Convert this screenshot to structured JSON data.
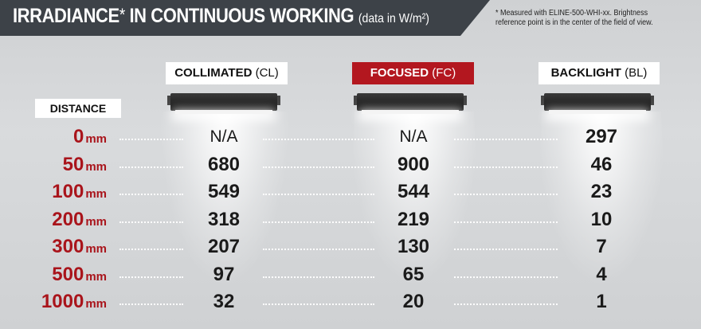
{
  "header": {
    "title_main": "IRRADIANCE",
    "title_star": "*",
    "title_rest": " IN CONTINUOUS WORKING",
    "title_unit": "(data in W/m²)",
    "footnote": "* Measured with ELINE-500-WHI-xx. Brightness reference point is in the center of the field of view."
  },
  "columns": [
    {
      "name": "COLLIMATED",
      "code": "(CL)",
      "highlight": false
    },
    {
      "name": "FOCUSED",
      "code": "(FC)",
      "highlight": true
    },
    {
      "name": "BACKLIGHT",
      "code": "(BL)",
      "highlight": false
    }
  ],
  "distance_header": "DISTANCE",
  "unit": "mm",
  "rows": [
    {
      "distance": "0",
      "cl": "N/A",
      "fc": "N/A",
      "bl": "297"
    },
    {
      "distance": "50",
      "cl": "680",
      "fc": "900",
      "bl": "46"
    },
    {
      "distance": "100",
      "cl": "549",
      "fc": "544",
      "bl": "23"
    },
    {
      "distance": "200",
      "cl": "318",
      "fc": "219",
      "bl": "10"
    },
    {
      "distance": "300",
      "cl": "207",
      "fc": "130",
      "bl": "7"
    },
    {
      "distance": "500",
      "cl": "97",
      "fc": "65",
      "bl": "4"
    },
    {
      "distance": "1000",
      "cl": "32",
      "fc": "20",
      "bl": "1"
    }
  ],
  "colors": {
    "banner": "#3d4248",
    "accent_red": "#b3171f",
    "distance_red": "#a9141b",
    "background": "#d3d5d7"
  },
  "icons": [
    "light-fixture-icon"
  ]
}
